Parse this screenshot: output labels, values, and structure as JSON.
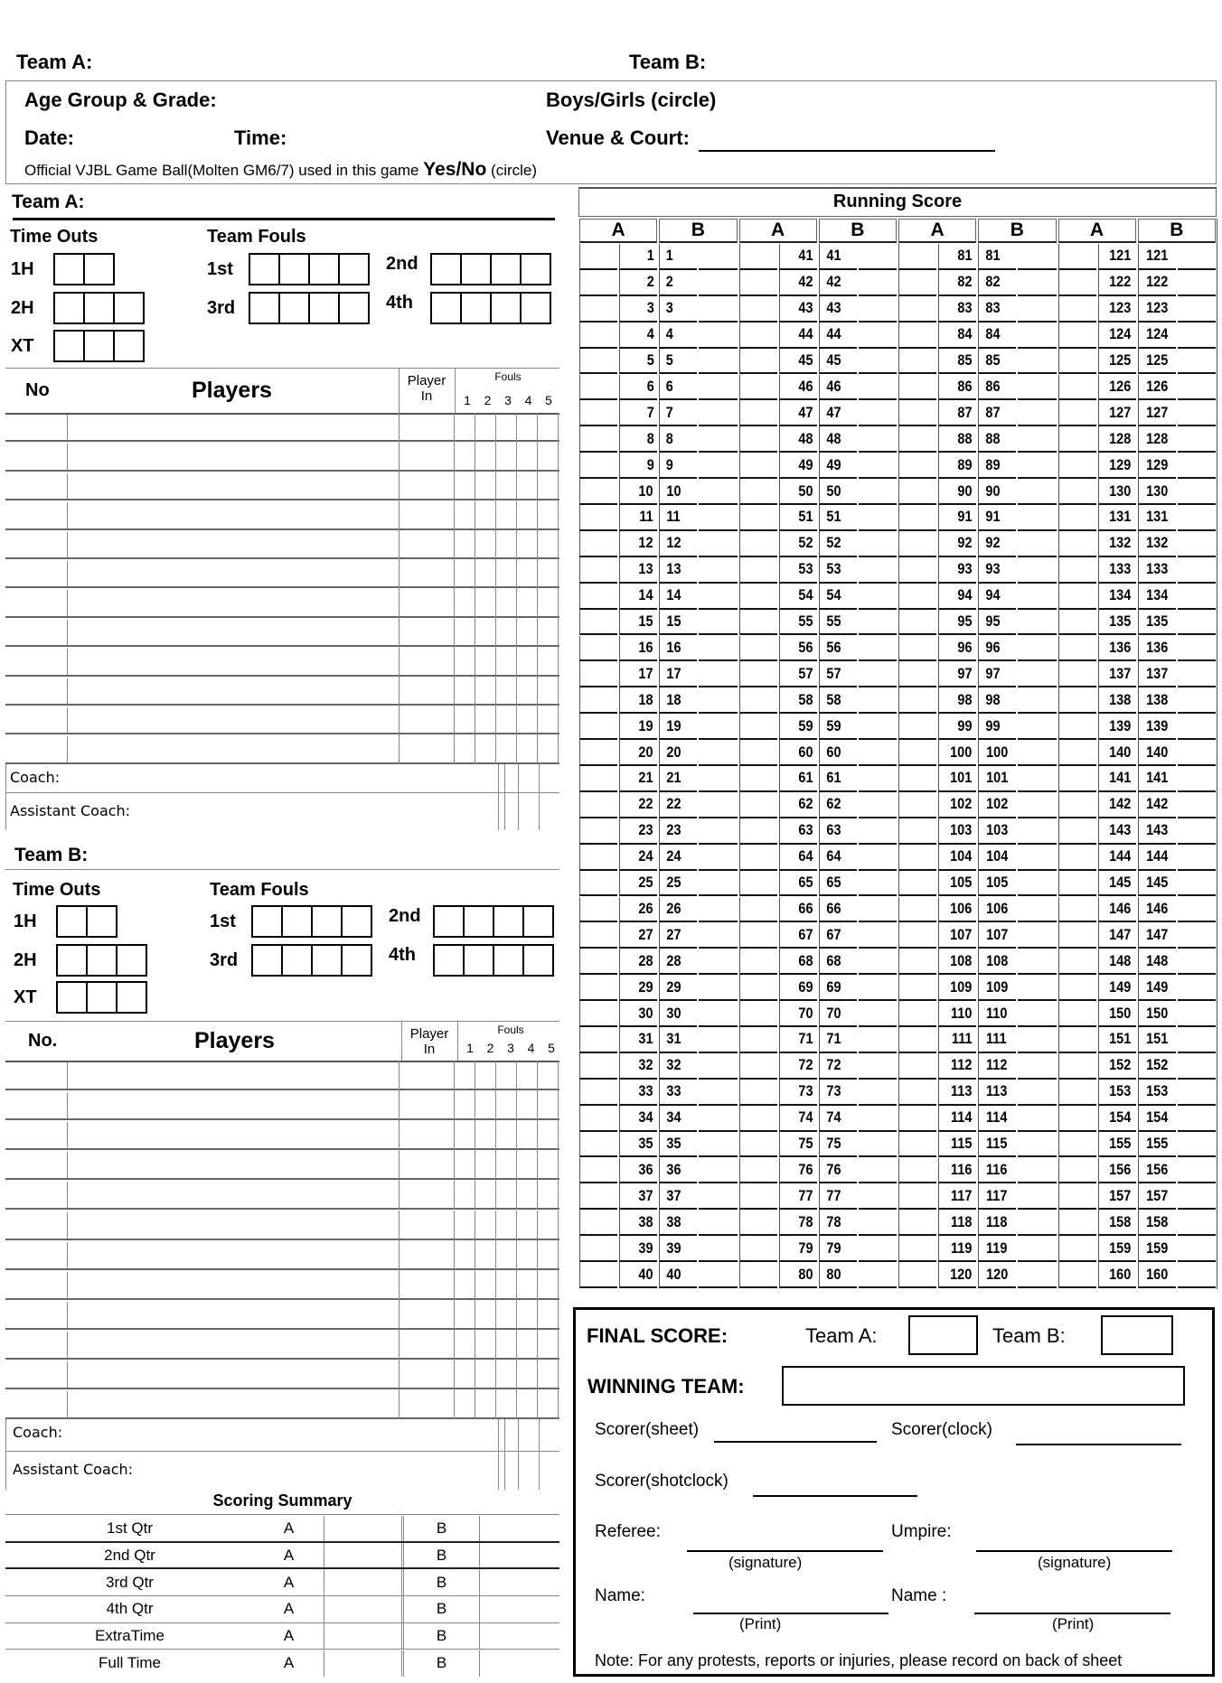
{
  "header": {
    "team_a_label": "Team A:",
    "team_b_label": "Team B:"
  },
  "info": {
    "age_group": "Age Group & Grade:",
    "gender": "Boys/Girls (circle)",
    "date": "Date:",
    "time": "Time:",
    "venue": "Venue & Court:",
    "ball_text": "Official VJBL Game Ball(Molten GM6/7) used in this game",
    "ball_yesno": "Yes/No",
    "ball_circle": "(circle)"
  },
  "teams": [
    {
      "title": "Team A:",
      "time_outs": "Time Outs",
      "team_fouls": "Team Fouls",
      "timeout_rows": [
        {
          "label": "1H",
          "boxes": 2
        },
        {
          "label": "2H",
          "boxes": 3
        },
        {
          "label": "XT",
          "boxes": 3
        }
      ],
      "foul_periods": [
        "1st",
        "2nd",
        "3rd",
        "4th"
      ],
      "no_label": "No",
      "players_label": "Players",
      "player_in_label": "Player In",
      "fouls_label": "Fouls",
      "foul_numbers": [
        "1",
        "2",
        "3",
        "4",
        "5"
      ],
      "player_rows": 12,
      "coach": "Coach:",
      "assistant_coach": "Assistant Coach:"
    },
    {
      "title": "Team B:",
      "time_outs": "Time Outs",
      "team_fouls": "Team Fouls",
      "timeout_rows": [
        {
          "label": "1H",
          "boxes": 2
        },
        {
          "label": "2H",
          "boxes": 3
        },
        {
          "label": "XT",
          "boxes": 3
        }
      ],
      "foul_periods": [
        "1st",
        "2nd",
        "3rd",
        "4th"
      ],
      "no_label": "No.",
      "players_label": "Players",
      "player_in_label": "Player In",
      "fouls_label": "Fouls",
      "foul_numbers": [
        "1",
        "2",
        "3",
        "4",
        "5"
      ],
      "player_rows": 12,
      "coach": "Coach:",
      "assistant_coach": "Assistant Coach:"
    }
  ],
  "scoring_summary": {
    "title": "Scoring Summary",
    "rows": [
      {
        "label": "1st Qtr",
        "a": "A",
        "b": "B"
      },
      {
        "label": "2nd Qtr",
        "a": "A",
        "b": "B"
      },
      {
        "label": "3rd Qtr",
        "a": "A",
        "b": "B"
      },
      {
        "label": "4th Qtr",
        "a": "A",
        "b": "B"
      },
      {
        "label": "ExtraTime",
        "a": "A",
        "b": "B"
      },
      {
        "label": "Full Time",
        "a": "A",
        "b": "B"
      }
    ]
  },
  "running_score": {
    "title": "Running Score",
    "headers": [
      "A",
      "B",
      "A",
      "B",
      "A",
      "B",
      "A",
      "B"
    ],
    "rows": [
      [
        1,
        1,
        41,
        41,
        81,
        81,
        121,
        121
      ],
      [
        2,
        2,
        42,
        42,
        82,
        82,
        122,
        122
      ],
      [
        3,
        3,
        43,
        43,
        83,
        83,
        123,
        123
      ],
      [
        4,
        4,
        44,
        44,
        84,
        84,
        124,
        124
      ],
      [
        5,
        5,
        45,
        45,
        85,
        85,
        125,
        125
      ],
      [
        6,
        6,
        46,
        46,
        86,
        86,
        126,
        126
      ],
      [
        7,
        7,
        47,
        47,
        87,
        87,
        127,
        127
      ],
      [
        8,
        8,
        48,
        48,
        88,
        88,
        128,
        128
      ],
      [
        9,
        9,
        49,
        49,
        89,
        89,
        129,
        129
      ],
      [
        10,
        10,
        50,
        50,
        90,
        90,
        130,
        130
      ],
      [
        11,
        11,
        51,
        51,
        91,
        91,
        131,
        131
      ],
      [
        12,
        12,
        52,
        52,
        92,
        92,
        132,
        132
      ],
      [
        13,
        13,
        53,
        53,
        93,
        93,
        133,
        133
      ],
      [
        14,
        14,
        54,
        54,
        94,
        94,
        134,
        134
      ],
      [
        15,
        15,
        55,
        55,
        95,
        95,
        135,
        135
      ],
      [
        16,
        16,
        56,
        56,
        96,
        96,
        136,
        136
      ],
      [
        17,
        17,
        57,
        57,
        97,
        97,
        137,
        137
      ],
      [
        18,
        18,
        58,
        58,
        98,
        98,
        138,
        138
      ],
      [
        19,
        19,
        59,
        59,
        99,
        99,
        139,
        139
      ],
      [
        20,
        20,
        60,
        60,
        100,
        100,
        140,
        140
      ],
      [
        21,
        21,
        61,
        61,
        101,
        101,
        141,
        141
      ],
      [
        22,
        22,
        62,
        62,
        102,
        102,
        142,
        142
      ],
      [
        23,
        23,
        63,
        63,
        103,
        103,
        143,
        143
      ],
      [
        24,
        24,
        64,
        64,
        104,
        104,
        144,
        144
      ],
      [
        25,
        25,
        65,
        65,
        105,
        105,
        145,
        145
      ],
      [
        26,
        26,
        66,
        66,
        106,
        106,
        146,
        146
      ],
      [
        27,
        27,
        67,
        67,
        107,
        107,
        147,
        147
      ],
      [
        28,
        28,
        68,
        68,
        108,
        108,
        148,
        148
      ],
      [
        29,
        29,
        69,
        69,
        109,
        109,
        149,
        149
      ],
      [
        30,
        30,
        70,
        70,
        110,
        110,
        150,
        150
      ],
      [
        31,
        31,
        71,
        71,
        111,
        111,
        151,
        151
      ],
      [
        32,
        32,
        72,
        72,
        112,
        112,
        152,
        152
      ],
      [
        33,
        33,
        73,
        73,
        113,
        113,
        153,
        153
      ],
      [
        34,
        34,
        74,
        74,
        114,
        114,
        154,
        154
      ],
      [
        35,
        35,
        75,
        75,
        115,
        115,
        155,
        155
      ],
      [
        36,
        36,
        76,
        76,
        116,
        116,
        156,
        156
      ],
      [
        37,
        37,
        77,
        77,
        117,
        117,
        157,
        157
      ],
      [
        38,
        38,
        78,
        78,
        118,
        118,
        158,
        158
      ],
      [
        39,
        39,
        79,
        79,
        119,
        119,
        159,
        159
      ],
      [
        40,
        40,
        80,
        80,
        120,
        120,
        160,
        160
      ]
    ]
  },
  "final": {
    "final_score": "FINAL SCORE:",
    "team_a": "Team A:",
    "team_b": "Team B:",
    "winning_team": "WINNING TEAM:",
    "scorer_sheet": "Scorer(sheet)",
    "scorer_clock": "Scorer(clock)",
    "scorer_shotclock": "Scorer(shotclock)",
    "referee": "Referee:",
    "umpire": "Umpire:",
    "signature": "(signature)",
    "name_left": "Name:",
    "name_right": "Name :",
    "print": "(Print)",
    "note": "Note: For any protests, reports or injuries, please record on back of sheet"
  }
}
